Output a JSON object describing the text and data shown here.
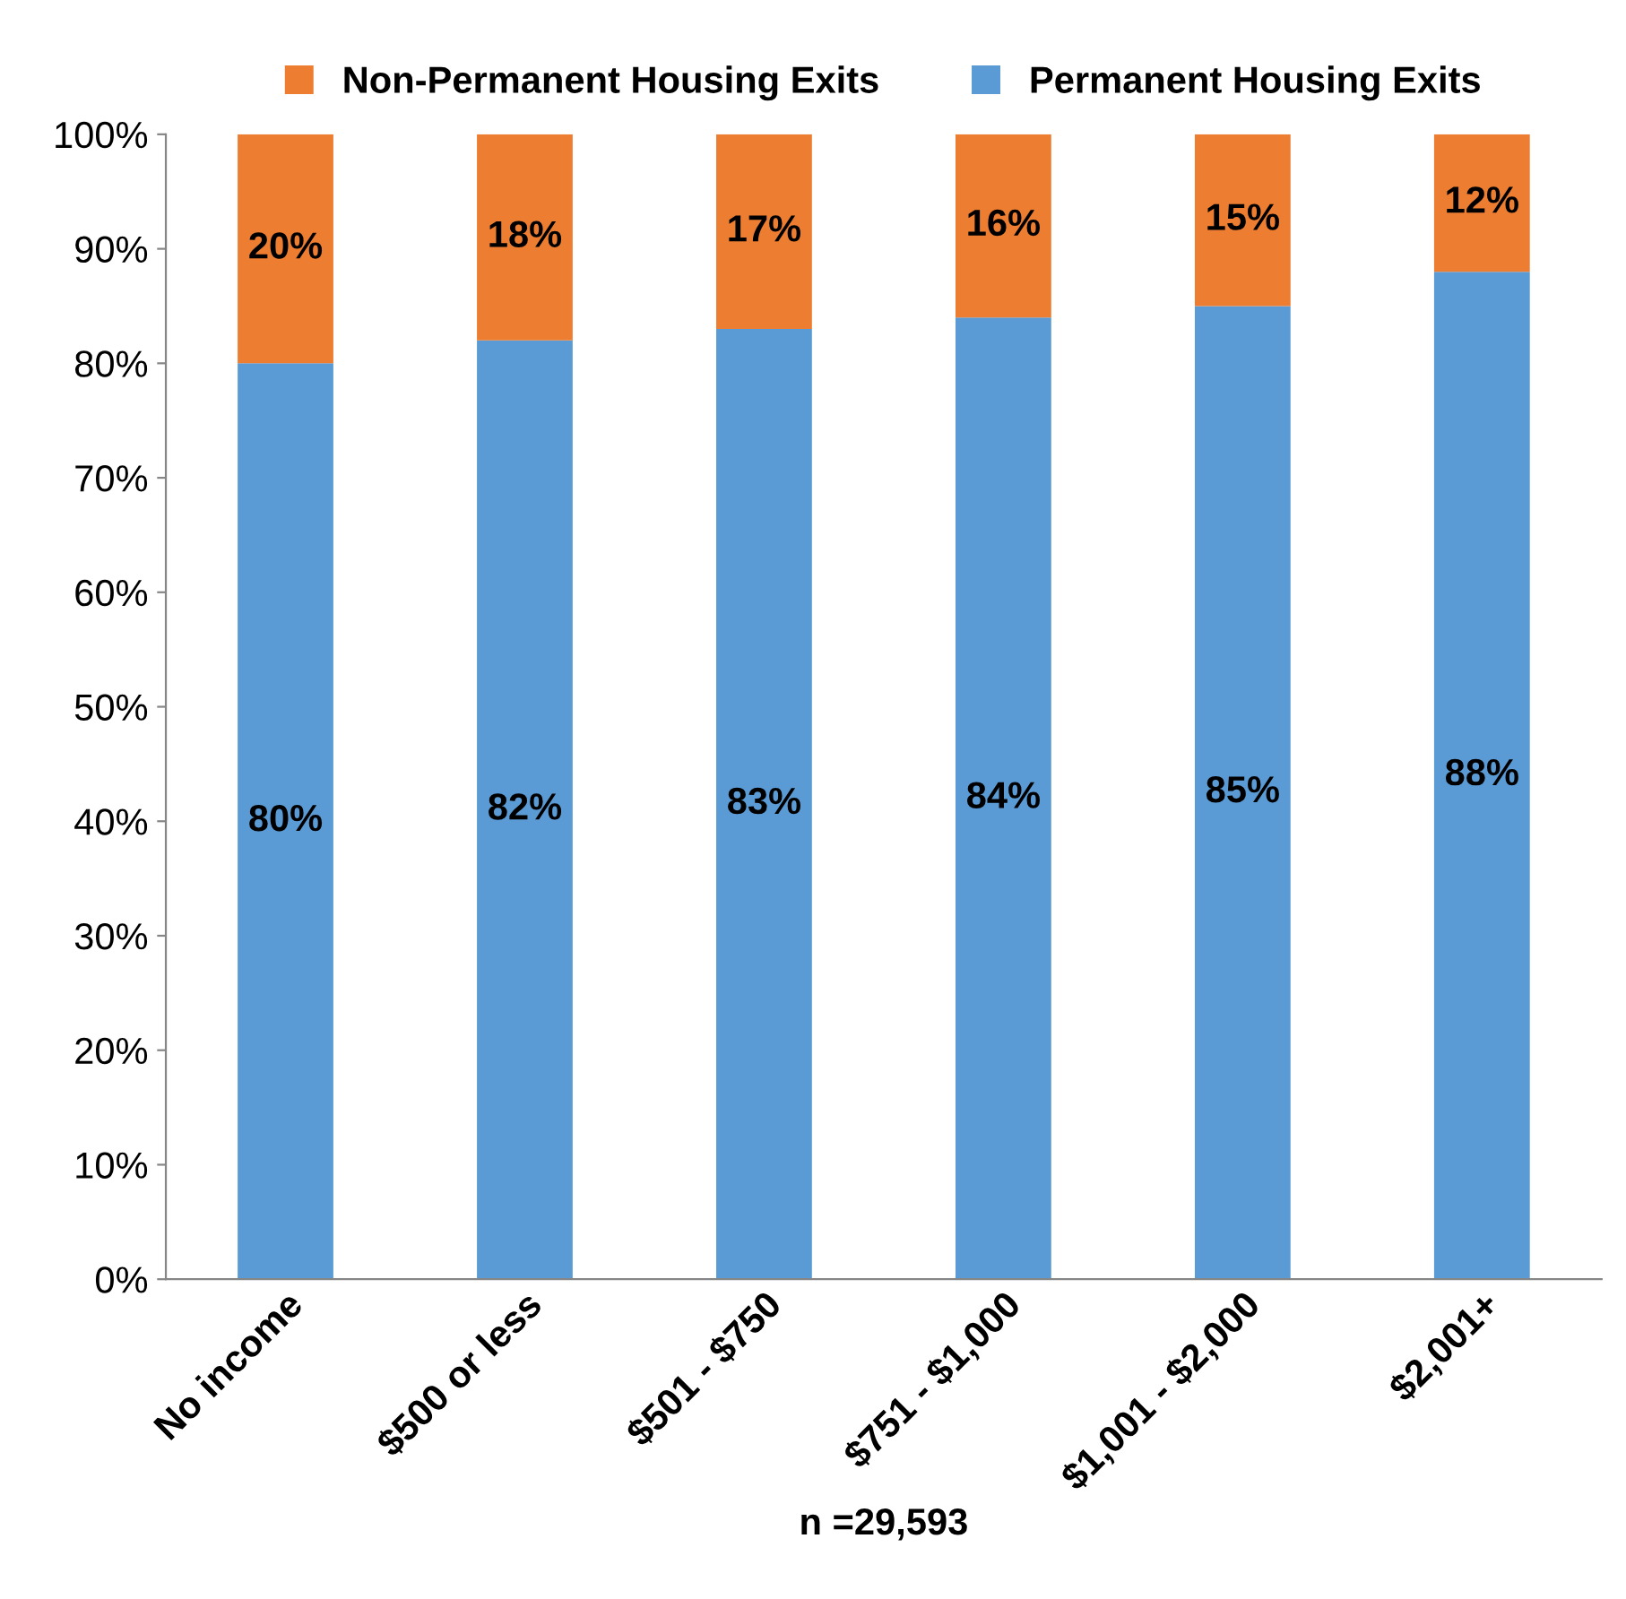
{
  "chart_data": {
    "type": "bar",
    "stacked": true,
    "xlabel": "n =29,593",
    "categories": [
      "No income",
      "$500 or less",
      "$501 - $750",
      "$751 - $1,000",
      "$1,001 - $2,000",
      "$2,001+"
    ],
    "series": [
      {
        "name": "Permanent Housing Exits",
        "color": "#5b9bd5",
        "values": [
          80,
          82,
          83,
          84,
          85,
          88
        ],
        "value_labels": [
          "80%",
          "82%",
          "83%",
          "84%",
          "85%",
          "88%"
        ]
      },
      {
        "name": "Non-Permanent Housing Exits",
        "color": "#ed7d31",
        "values": [
          20,
          18,
          17,
          16,
          15,
          12
        ],
        "value_labels": [
          "20%",
          "18%",
          "17%",
          "16%",
          "15%",
          "12%"
        ]
      }
    ],
    "ylim": [
      0,
      100
    ],
    "yticks": [
      {
        "value": 0,
        "label": "0%"
      },
      {
        "value": 10,
        "label": "10%"
      },
      {
        "value": 20,
        "label": "20%"
      },
      {
        "value": 30,
        "label": "30%"
      },
      {
        "value": 40,
        "label": "40%"
      },
      {
        "value": 50,
        "label": "50%"
      },
      {
        "value": 60,
        "label": "60%"
      },
      {
        "value": 70,
        "label": "70%"
      },
      {
        "value": 80,
        "label": "80%"
      },
      {
        "value": 90,
        "label": "90%"
      },
      {
        "value": 100,
        "label": "100%"
      }
    ],
    "grid": false,
    "legend": "top"
  }
}
